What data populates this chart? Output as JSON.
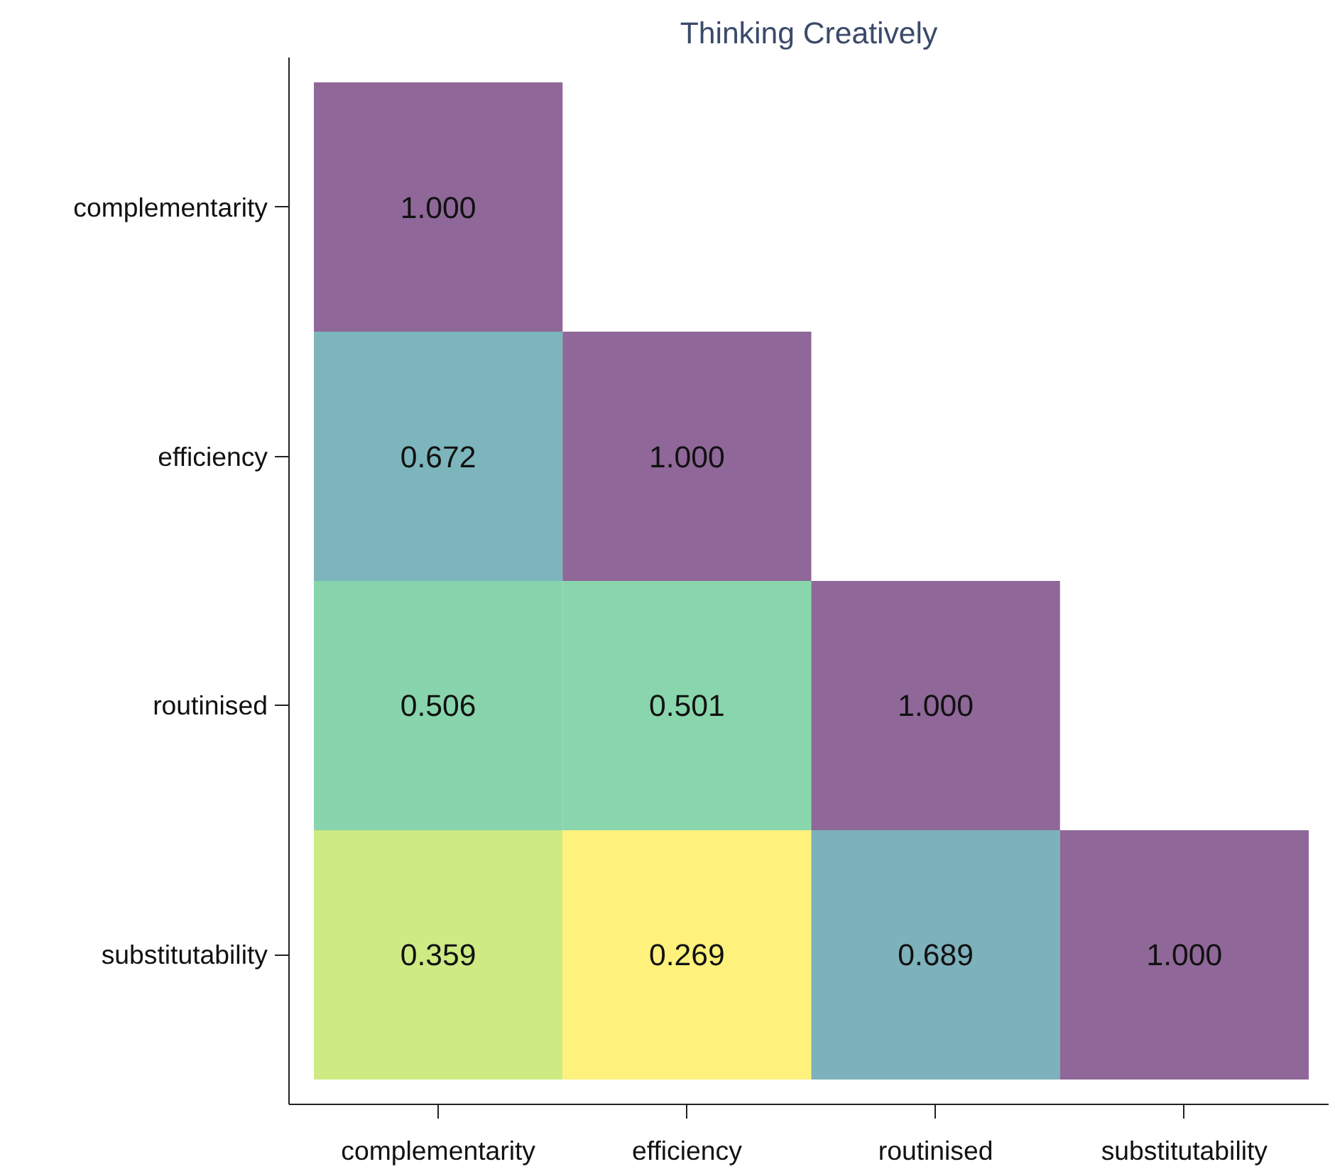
{
  "chart_data": {
    "type": "heatmap",
    "title": "Thinking Creatively",
    "categories": [
      "complementarity",
      "efficiency",
      "routinised",
      "substitutability"
    ],
    "y_categories": [
      "complementarity",
      "efficiency",
      "routinised",
      "substitutability"
    ],
    "cells": [
      [
        1.0,
        null,
        null,
        null
      ],
      [
        0.672,
        1.0,
        null,
        null
      ],
      [
        0.506,
        0.501,
        1.0,
        null
      ],
      [
        0.359,
        0.269,
        0.689,
        1.0
      ]
    ],
    "cell_labels": [
      [
        "1.000",
        null,
        null,
        null
      ],
      [
        "0.672",
        "1.000",
        null,
        null
      ],
      [
        "0.506",
        "0.501",
        "1.000",
        null
      ],
      [
        "0.359",
        "0.269",
        "0.689",
        "1.000"
      ]
    ],
    "grid": false
  }
}
